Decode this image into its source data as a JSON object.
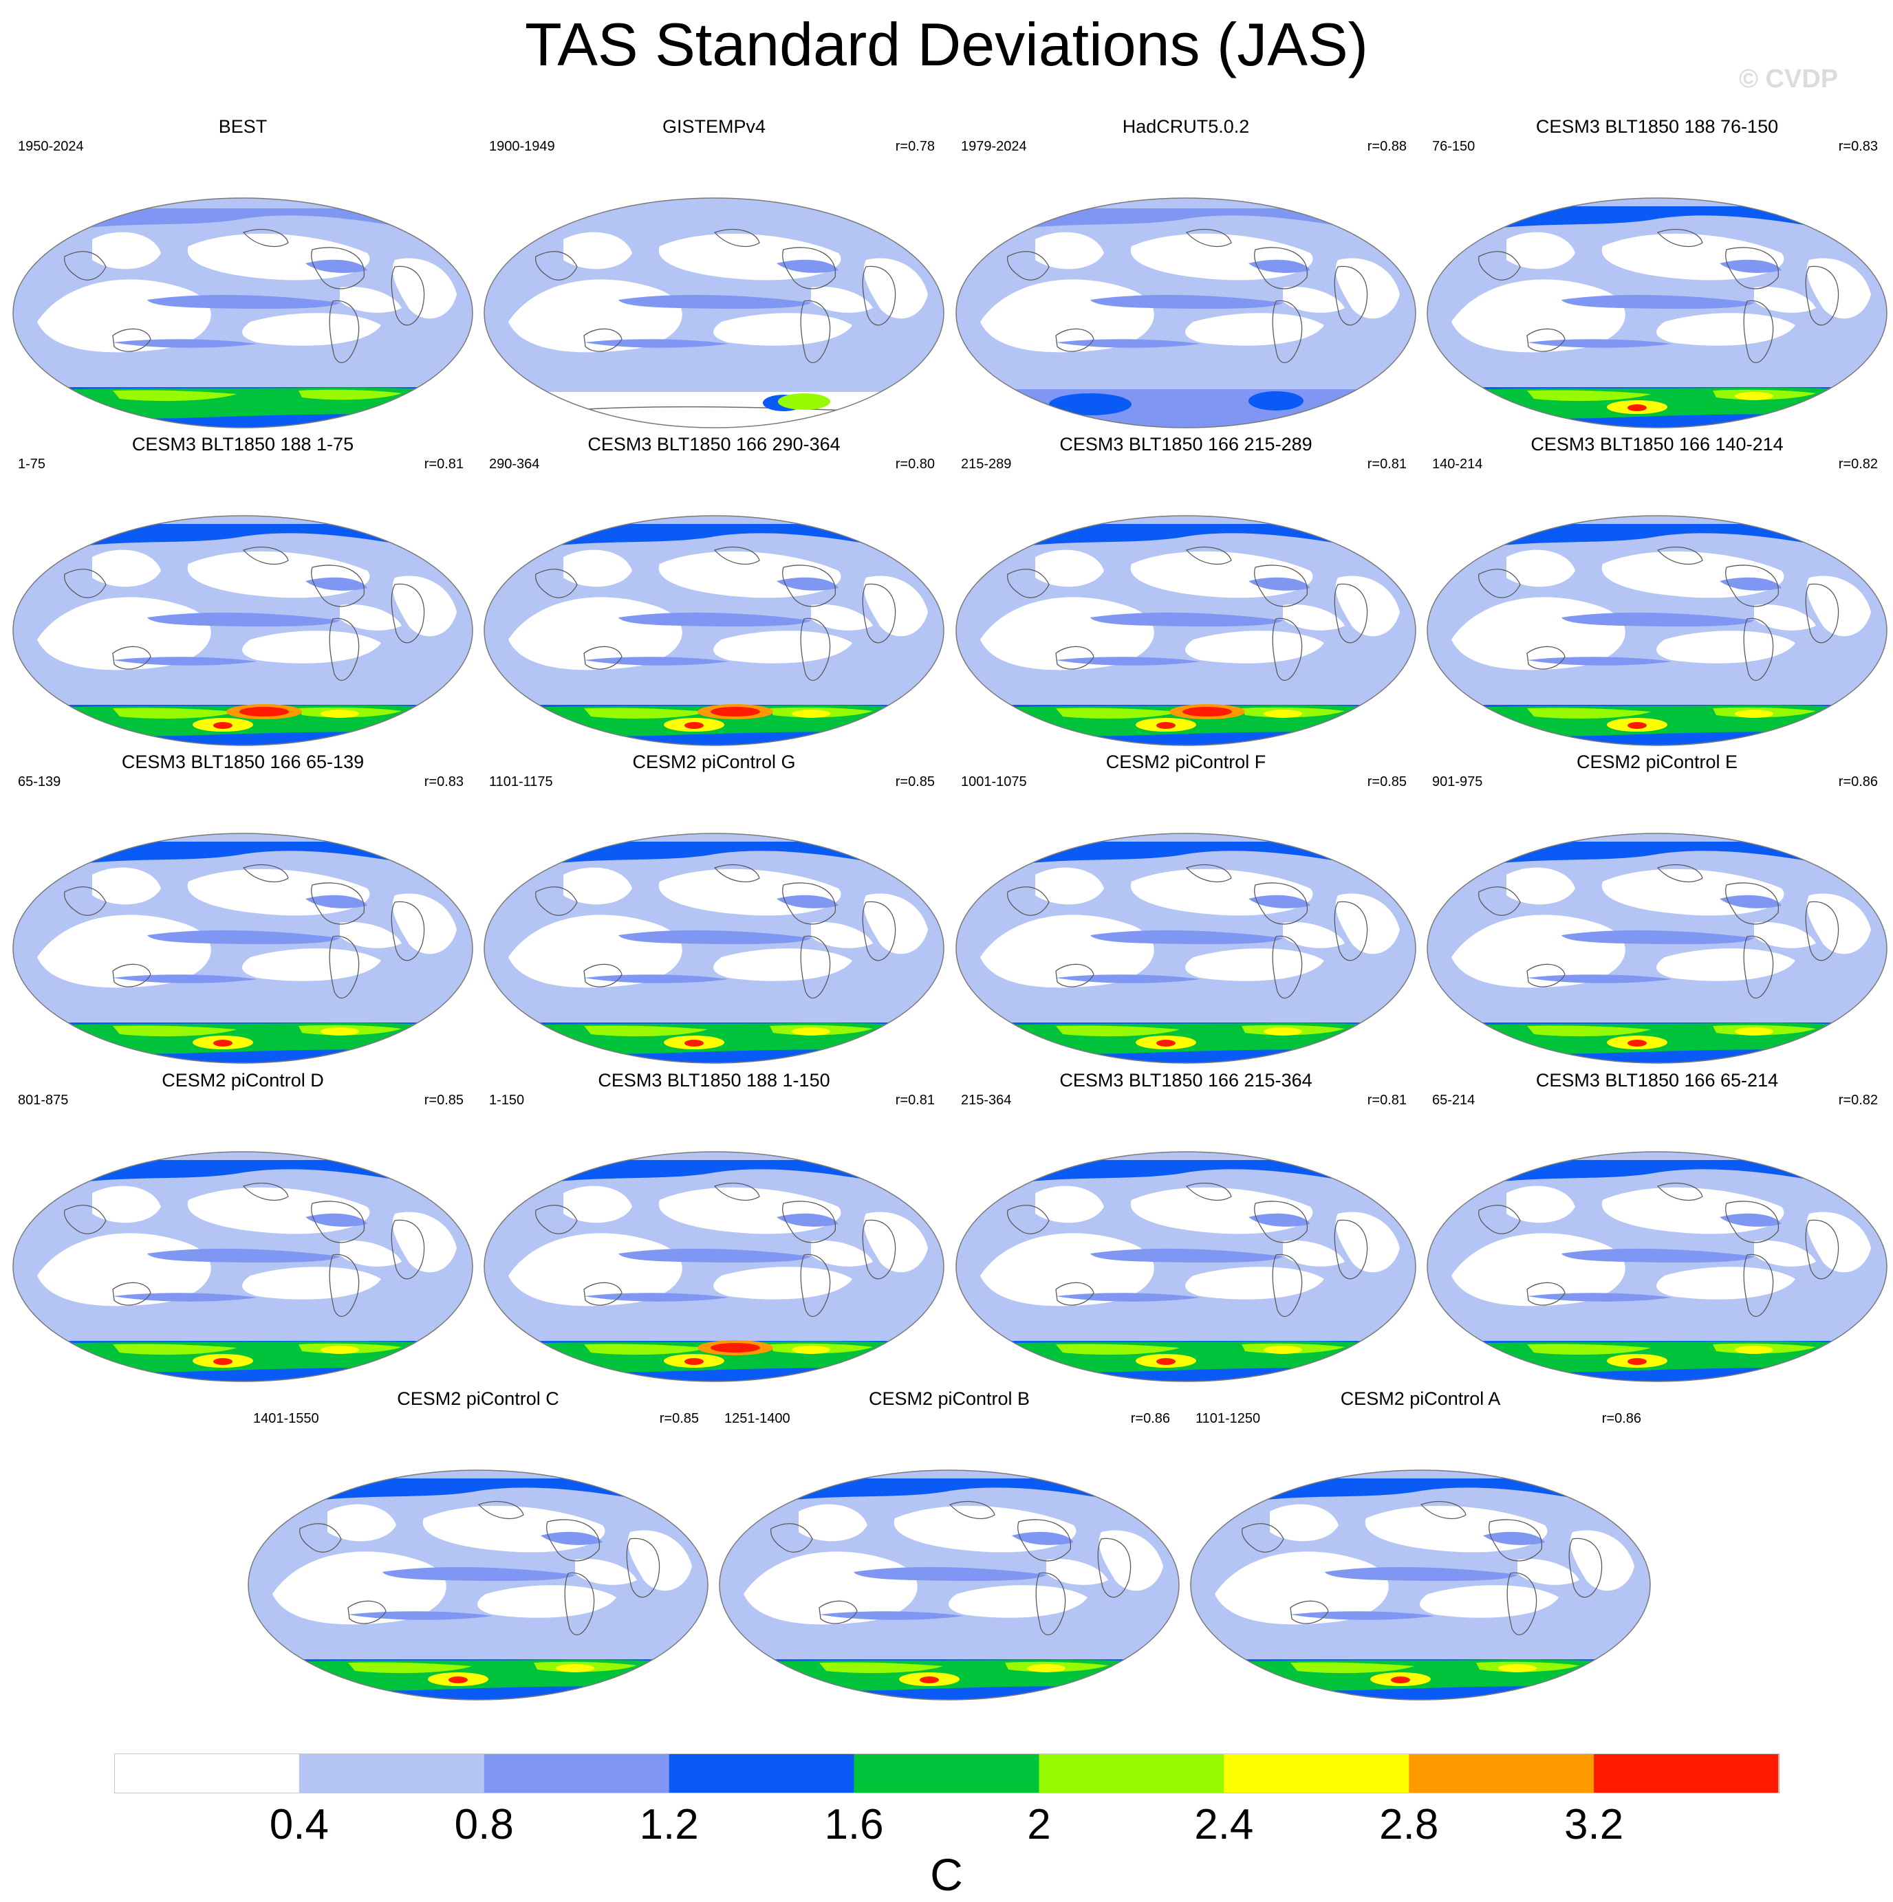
{
  "figure": {
    "title": "TAS Standard Deviations (JAS)",
    "watermark": "© CVDP"
  },
  "legend": {
    "colors": [
      "#ffffff",
      "#b4c4f5",
      "#7f97f2",
      "#0a5af5",
      "#00c33c",
      "#98fa00",
      "#ffff00",
      "#ff9900",
      "#ff1a00"
    ],
    "tick_labels": [
      "0.4",
      "0.8",
      "1.2",
      "1.6",
      "2",
      "2.4",
      "2.8",
      "3.2"
    ],
    "units": "C"
  },
  "panels": [
    {
      "title": "BEST",
      "years": "1950-2024",
      "r": "",
      "antarctic": 2,
      "row": 0,
      "col": 0
    },
    {
      "title": "GISTEMPv4",
      "years": "1900-1949",
      "r": "r=0.78",
      "antarctic": 0,
      "row": 0,
      "col": 1
    },
    {
      "title": "HadCRUT5.0.2",
      "years": "1979-2024",
      "r": "r=0.88",
      "antarctic": 1,
      "row": 0,
      "col": 2
    },
    {
      "title": "CESM3 BLT1850 188 76-150",
      "years": "76-150",
      "r": "r=0.83",
      "antarctic": 3,
      "row": 0,
      "col": 3
    },
    {
      "title": "CESM3 BLT1850 188 1-75",
      "years": "1-75",
      "r": "r=0.81",
      "antarctic": 4,
      "row": 1,
      "col": 0
    },
    {
      "title": "CESM3 BLT1850 166 290-364",
      "years": "290-364",
      "r": "r=0.80",
      "antarctic": 4,
      "row": 1,
      "col": 1
    },
    {
      "title": "CESM3 BLT1850 166 215-289",
      "years": "215-289",
      "r": "r=0.81",
      "antarctic": 4,
      "row": 1,
      "col": 2
    },
    {
      "title": "CESM3 BLT1850 166 140-214",
      "years": "140-214",
      "r": "r=0.82",
      "antarctic": 3,
      "row": 1,
      "col": 3
    },
    {
      "title": "CESM3 BLT1850 166 65-139",
      "years": "65-139",
      "r": "r=0.83",
      "antarctic": 3,
      "row": 2,
      "col": 0
    },
    {
      "title": "CESM2 piControl G",
      "years": "1101-1175",
      "r": "r=0.85",
      "antarctic": 3,
      "row": 2,
      "col": 1
    },
    {
      "title": "CESM2 piControl F",
      "years": "1001-1075",
      "r": "r=0.85",
      "antarctic": 3,
      "row": 2,
      "col": 2
    },
    {
      "title": "CESM2 piControl E",
      "years": "901-975",
      "r": "r=0.86",
      "antarctic": 3,
      "row": 2,
      "col": 3
    },
    {
      "title": "CESM2 piControl D",
      "years": "801-875",
      "r": "r=0.85",
      "antarctic": 3,
      "row": 3,
      "col": 0
    },
    {
      "title": "CESM3 BLT1850 188 1-150",
      "years": "1-150",
      "r": "r=0.81",
      "antarctic": 4,
      "row": 3,
      "col": 1
    },
    {
      "title": "CESM3 BLT1850 166 215-364",
      "years": "215-364",
      "r": "r=0.81",
      "antarctic": 3,
      "row": 3,
      "col": 2
    },
    {
      "title": "CESM3 BLT1850 166 65-214",
      "years": "65-214",
      "r": "r=0.82",
      "antarctic": 3,
      "row": 3,
      "col": 3
    },
    {
      "title": "CESM2 piControl C",
      "years": "1401-1550",
      "r": "r=0.85",
      "antarctic": 3,
      "row": 4,
      "col": 0
    },
    {
      "title": "CESM2 piControl B",
      "years": "1251-1400",
      "r": "r=0.86",
      "antarctic": 3,
      "row": 4,
      "col": 1
    },
    {
      "title": "CESM2 piControl A",
      "years": "1101-1250",
      "r": "r=0.86",
      "antarctic": 3,
      "row": 4,
      "col": 2
    }
  ]
}
